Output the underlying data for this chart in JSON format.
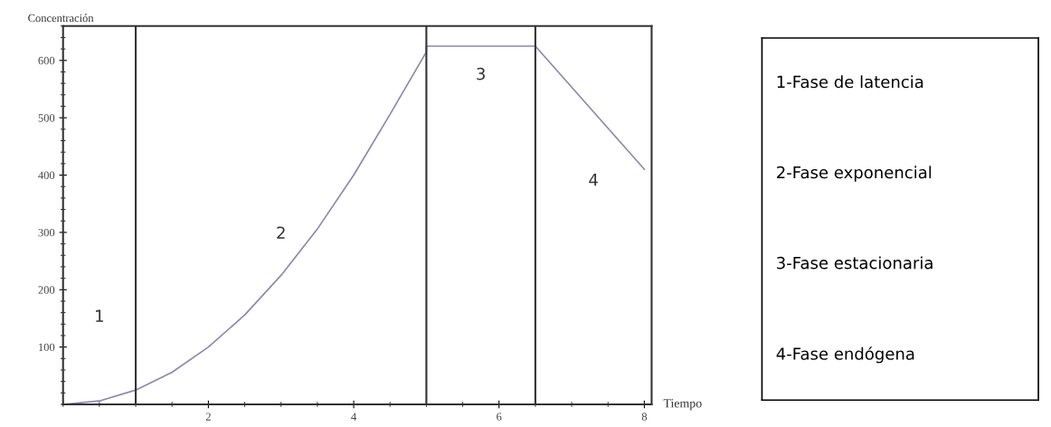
{
  "chart_data": {
    "type": "line",
    "xlabel": "Tiempo",
    "ylabel": "Concentración",
    "series": [
      {
        "color": "#8a88b2",
        "x": [
          0,
          0.5,
          1,
          1.5,
          2,
          2.5,
          3,
          3.5,
          4,
          4.5,
          5,
          5,
          6.5,
          8
        ],
        "values": [
          0,
          6,
          25,
          56,
          100,
          156,
          225,
          306,
          400,
          506,
          615,
          625,
          625,
          410
        ]
      }
    ],
    "xlim": [
      0,
      8.1
    ],
    "ylim": [
      0,
      660
    ],
    "xticks": [
      2,
      4,
      6,
      8
    ],
    "yticks": [
      100,
      200,
      300,
      400,
      500,
      600
    ],
    "ref_lines": [
      {
        "axis": "x",
        "value": 1,
        "color": "#333333"
      },
      {
        "axis": "x",
        "value": 5,
        "color": "#333333"
      },
      {
        "axis": "x",
        "value": 6.5,
        "color": "#333333"
      }
    ],
    "annotations": [
      "1",
      "2",
      "3",
      "4",
      "1-Fase de latencia",
      "2-Fase exponencial",
      "3-Fase estacionaria",
      "4-Fase endógena"
    ],
    "grid": false,
    "legend": false
  }
}
